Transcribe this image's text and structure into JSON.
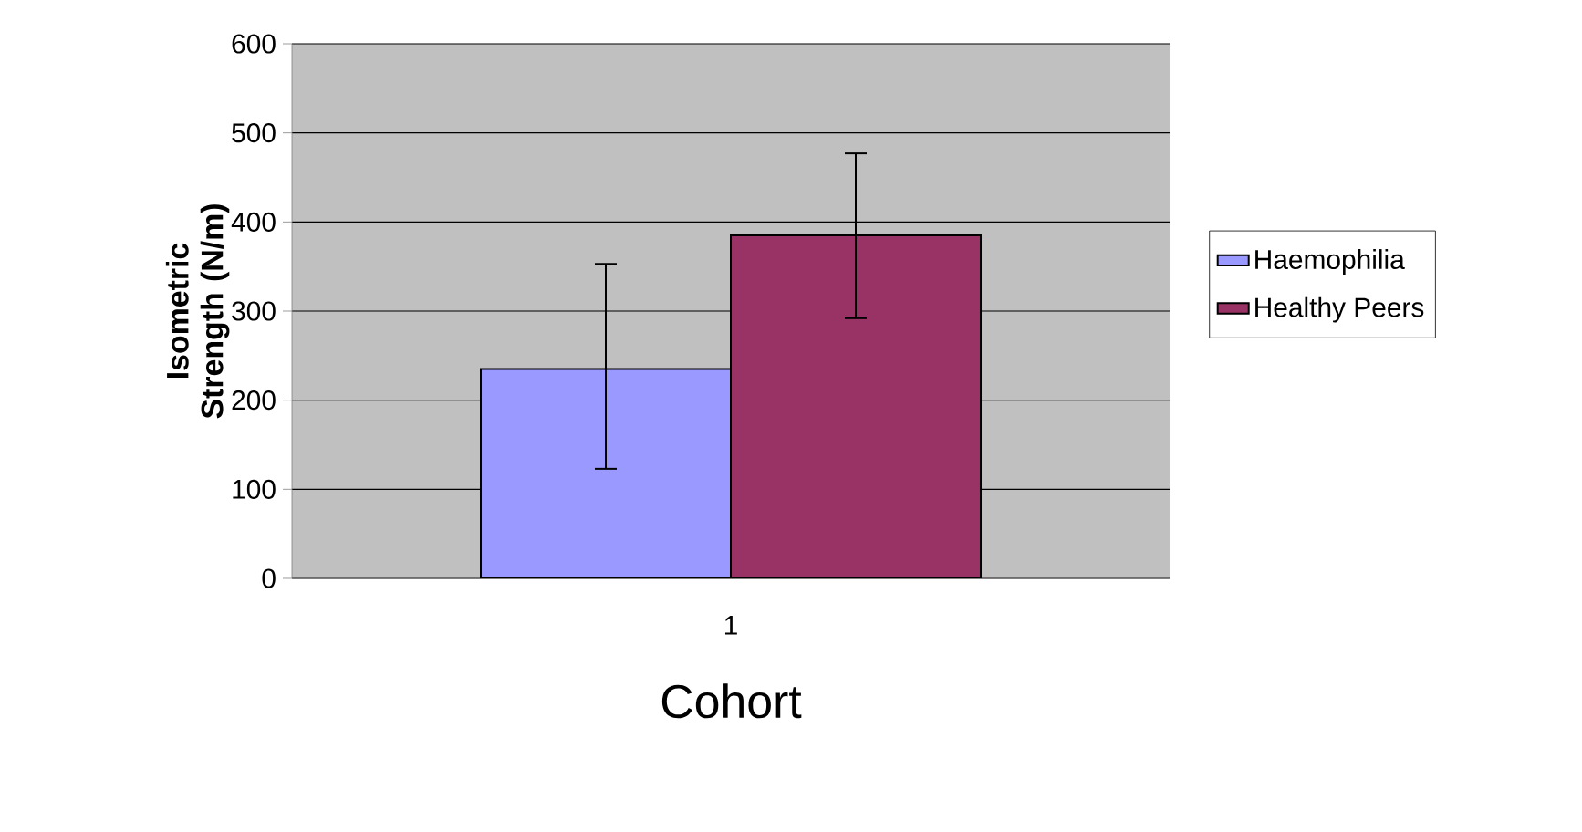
{
  "chart_data": {
    "type": "bar",
    "ylabel": "Isometric Strength (N/m)",
    "xlabel": "Cohort",
    "categories": [
      "1"
    ],
    "series": [
      {
        "name": "Haemophilia",
        "color": "#9999ff",
        "values": [
          235
        ],
        "errors": [
          [
            123,
            353
          ]
        ]
      },
      {
        "name": "Healthy Peers",
        "color": "#993366",
        "values": [
          385
        ],
        "errors": [
          [
            292,
            477
          ]
        ]
      }
    ],
    "ylim": [
      0,
      600
    ],
    "yticks": [
      0,
      100,
      200,
      300,
      400,
      500,
      600
    ],
    "grid": "y",
    "legend": "right"
  }
}
